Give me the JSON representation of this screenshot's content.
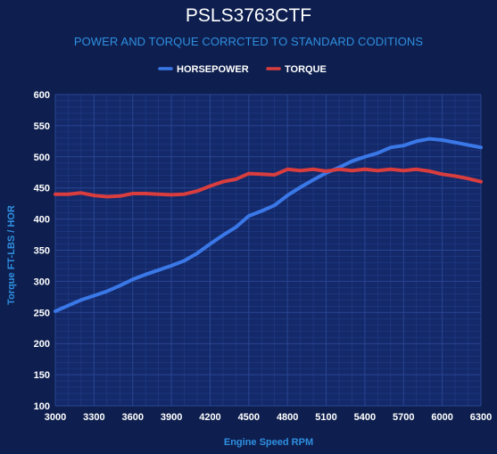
{
  "chart_data": {
    "type": "line",
    "title": "PSLS3763CTF",
    "subtitle": "POWER AND TORQUE CORRCTED TO STANDARD CODITIONS",
    "xlabel": "Engine Speed RPM",
    "ylabel": "Torque FT-LBS / HOR",
    "xlim": [
      3000,
      6300
    ],
    "ylim": [
      100,
      600
    ],
    "x_ticks": [
      "3000",
      "3300",
      "3600",
      "3900",
      "4200",
      "4500",
      "4800",
      "5100",
      "5400",
      "5700",
      "6000",
      "6300"
    ],
    "y_ticks": [
      "100",
      "150",
      "200",
      "250",
      "300",
      "350",
      "400",
      "450",
      "500",
      "550",
      "600"
    ],
    "legend_position": "top-center",
    "grid": true,
    "x": [
      3000,
      3100,
      3200,
      3300,
      3400,
      3500,
      3600,
      3700,
      3800,
      3900,
      4000,
      4100,
      4200,
      4300,
      4400,
      4500,
      4600,
      4700,
      4800,
      4900,
      5000,
      5100,
      5200,
      5300,
      5400,
      5500,
      5600,
      5700,
      5800,
      5900,
      6000,
      6100,
      6200,
      6300
    ],
    "series": [
      {
        "name": "HORSEPOWER",
        "color": "#3a78e8",
        "values": [
          252,
          261,
          270,
          277,
          284,
          293,
          303,
          311,
          318,
          325,
          333,
          345,
          360,
          374,
          387,
          405,
          413,
          422,
          438,
          451,
          463,
          474,
          483,
          493,
          500,
          506,
          515,
          518,
          525,
          529,
          527,
          523,
          519,
          515
        ]
      },
      {
        "name": "TORQUE",
        "color": "#d93d3d",
        "values": [
          440,
          440,
          442,
          438,
          436,
          437,
          441,
          441,
          440,
          439,
          440,
          445,
          453,
          460,
          464,
          473,
          472,
          471,
          480,
          478,
          480,
          477,
          480,
          478,
          480,
          478,
          480,
          478,
          480,
          477,
          472,
          469,
          465,
          460
        ]
      }
    ]
  },
  "colors": {
    "background": "#0e1f4f",
    "plot_background": "#13296a",
    "grid": "#2a4592",
    "axis_title": "#2f8fe0",
    "text": "#ffffff"
  }
}
